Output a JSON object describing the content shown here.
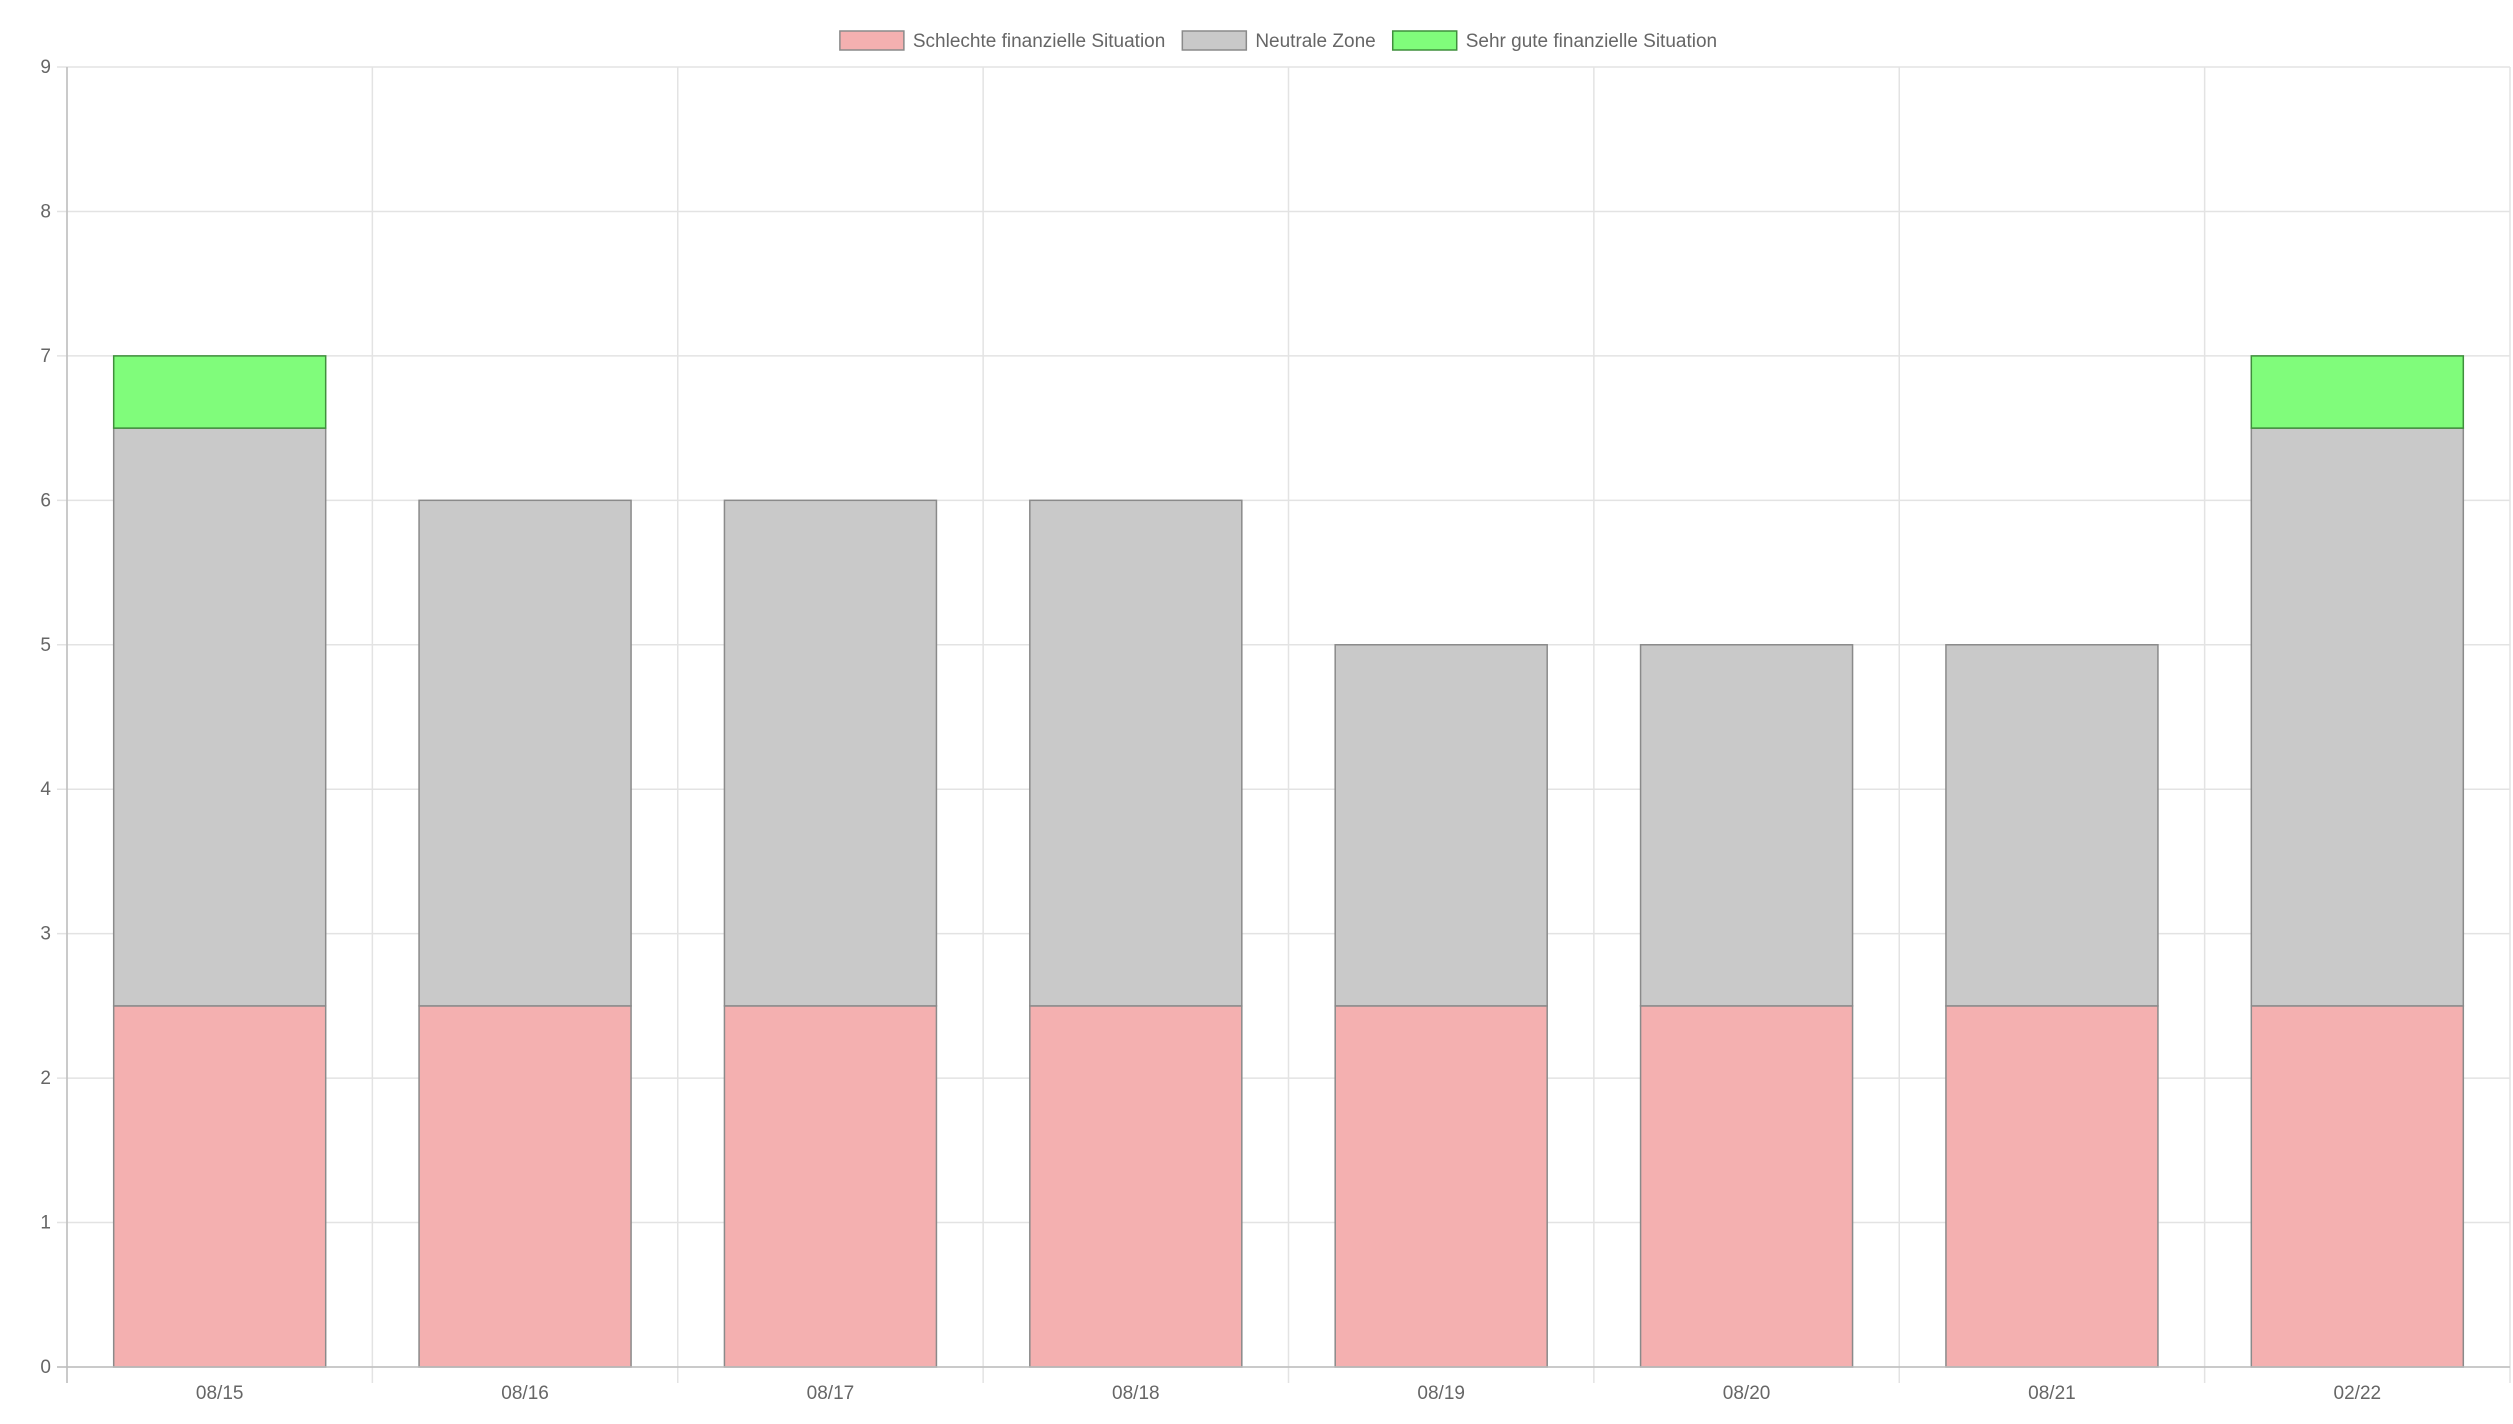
{
  "chart_data": {
    "type": "bar",
    "stacked": true,
    "title": "",
    "xlabel": "",
    "ylabel": "",
    "categories": [
      "08/15",
      "08/16",
      "08/17",
      "08/18",
      "08/19",
      "08/20",
      "08/21",
      "02/22"
    ],
    "ylim": [
      0,
      9
    ],
    "yticks": [
      0,
      1,
      2,
      3,
      4,
      5,
      6,
      7,
      8,
      9
    ],
    "grid": true,
    "legend_position": "top-center",
    "series": [
      {
        "name": "Schlechte finanzielle Situation",
        "color": "#f4b0b0",
        "border_color": "#8a8a8a",
        "values": [
          2.5,
          2.5,
          2.5,
          2.5,
          2.5,
          2.5,
          2.5,
          2.5
        ]
      },
      {
        "name": "Neutrale Zone",
        "color": "#c9c9c9",
        "border_color": "#8a8a8a",
        "values": [
          4,
          3.5,
          3.5,
          3.5,
          2.5,
          2.5,
          2.5,
          4
        ]
      },
      {
        "name": "Sehr gute finanzielle Situation",
        "color": "#80fc7b",
        "border_color": "#3f8f3c",
        "values": [
          0.5,
          0,
          0,
          0,
          0,
          0,
          0,
          0.5
        ]
      }
    ]
  }
}
